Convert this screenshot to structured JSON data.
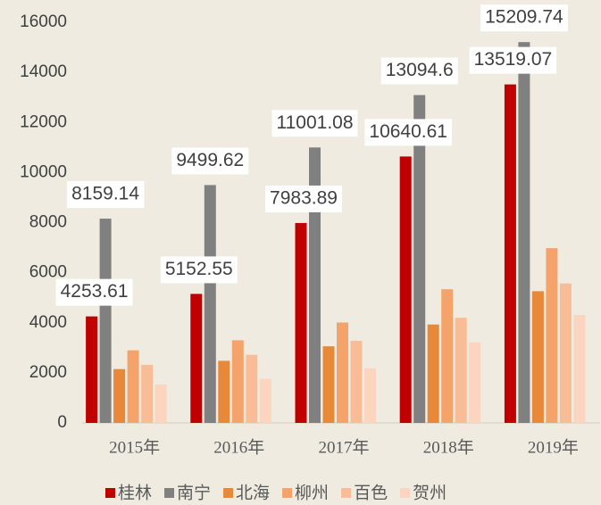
{
  "chart_data": {
    "type": "bar",
    "categories": [
      "2015年",
      "2016年",
      "2017年",
      "2018年",
      "2019年"
    ],
    "series": [
      {
        "name": "桂林",
        "color": "#c00000",
        "labels": true,
        "values": [
          4253.61,
          5152.55,
          7983.89,
          10640.61,
          13519.07
        ]
      },
      {
        "name": "南宁",
        "color": "#808080",
        "labels": true,
        "values": [
          8159.14,
          9499.62,
          11001.08,
          13094.6,
          15209.74
        ]
      },
      {
        "name": "北海",
        "color": "#e8893a",
        "labels": false,
        "values": [
          2150,
          2480,
          3060,
          3930,
          5260
        ]
      },
      {
        "name": "柳州",
        "color": "#f4a46a",
        "labels": false,
        "values": [
          2900,
          3300,
          4010,
          5340,
          6980
        ]
      },
      {
        "name": "百色",
        "color": "#f8bd96",
        "labels": false,
        "values": [
          2320,
          2720,
          3280,
          4200,
          5570
        ]
      },
      {
        "name": "贺州",
        "color": "#fbd5c0",
        "labels": false,
        "values": [
          1530,
          1760,
          2180,
          3220,
          4310
        ]
      }
    ],
    "ylim": [
      0,
      16000
    ],
    "yticks": [
      0,
      2000,
      4000,
      6000,
      8000,
      10000,
      12000,
      14000,
      16000
    ],
    "grid": false,
    "legend": "bottom"
  }
}
